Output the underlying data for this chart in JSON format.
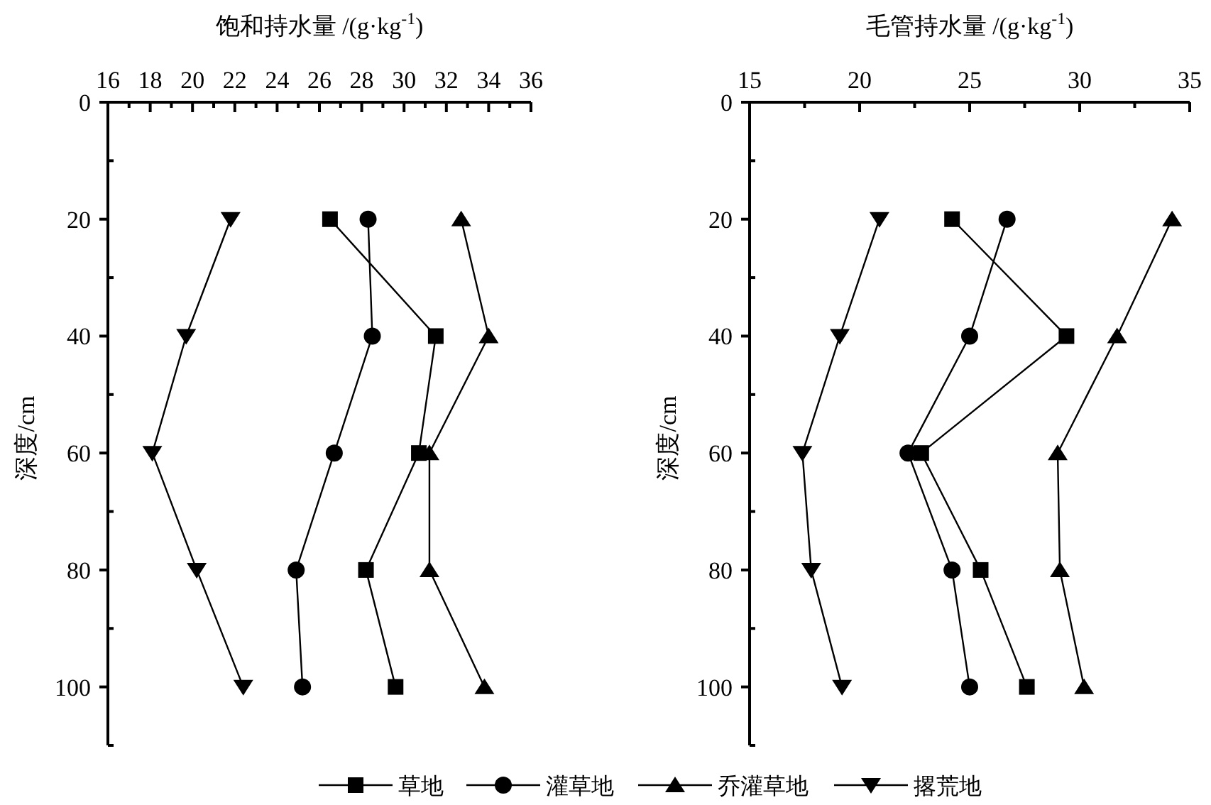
{
  "chart_data": [
    {
      "type": "line",
      "xlabel": "饱和持水量 /(g·kg$^{-1}$)",
      "ylabel": "深度/cm",
      "xlim": [
        16,
        36
      ],
      "ylim": [
        110,
        0
      ],
      "xticks": [
        16,
        {
          "value": 17,
          "label": null
        },
        18,
        {
          "value": 19,
          "label": null
        },
        20,
        {
          "value": 21,
          "label": null
        },
        22,
        {
          "value": 23,
          "label": null
        },
        24,
        {
          "value": 25,
          "label": null
        },
        26,
        {
          "value": 27,
          "label": null
        },
        28,
        {
          "value": 29,
          "label": null
        },
        30,
        {
          "value": 31,
          "label": null
        },
        32,
        {
          "value": 33,
          "label": null
        },
        34,
        {
          "value": 35,
          "label": null
        },
        36
      ],
      "yticks": [
        0,
        {
          "value": 10,
          "label": null
        },
        20,
        {
          "value": 30,
          "label": null
        },
        40,
        {
          "value": 50,
          "label": null
        },
        60,
        {
          "value": 70,
          "label": null
        },
        80,
        {
          "value": 90,
          "label": null
        },
        100,
        {
          "value": 110,
          "label": null
        }
      ],
      "legend": "bottom",
      "grid": false,
      "series": [
        {
          "name": "草地",
          "color": "#000000",
          "marker": "square",
          "x": [
            26.5,
            31.5,
            30.7,
            28.2,
            29.6
          ],
          "values": [
            20,
            40,
            60,
            80,
            100
          ]
        },
        {
          "name": "灌草地",
          "color": "#000000",
          "marker": "circle",
          "x": [
            28.3,
            28.5,
            26.7,
            24.9,
            25.2
          ],
          "values": [
            20,
            40,
            60,
            80,
            100
          ]
        },
        {
          "name": "乔灌草地",
          "color": "#000000",
          "marker": "triangle",
          "x": [
            32.7,
            34.0,
            31.2,
            31.2,
            33.8
          ],
          "values": [
            20,
            40,
            60,
            80,
            100
          ]
        },
        {
          "name": "撂荒地",
          "color": "#000000",
          "marker": "triangle-down",
          "x": [
            21.8,
            19.7,
            18.1,
            20.2,
            22.4
          ],
          "values": [
            20,
            40,
            60,
            80,
            100
          ]
        }
      ]
    },
    {
      "type": "line",
      "xlabel": "毛管持水量 /(g·kg$^{-1}$)",
      "ylabel": "深度/cm",
      "xlim": [
        15,
        35
      ],
      "ylim": [
        110,
        0
      ],
      "xticks": [
        15,
        {
          "value": 17.5,
          "label": null
        },
        20,
        {
          "value": 22.5,
          "label": null
        },
        25,
        {
          "value": 27.5,
          "label": null
        },
        30,
        {
          "value": 32.5,
          "label": null
        },
        35
      ],
      "yticks": [
        0,
        {
          "value": 10,
          "label": null
        },
        20,
        {
          "value": 30,
          "label": null
        },
        40,
        {
          "value": 50,
          "label": null
        },
        60,
        {
          "value": 70,
          "label": null
        },
        80,
        {
          "value": 90,
          "label": null
        },
        100,
        {
          "value": 110,
          "label": null
        }
      ],
      "grid": false,
      "series": [
        {
          "color": "#000000",
          "marker": "square",
          "x": [
            24.2,
            29.4,
            22.8,
            25.5,
            27.6
          ],
          "values": [
            20,
            40,
            60,
            80,
            100
          ]
        },
        {
          "color": "#000000",
          "marker": "circle",
          "x": [
            26.7,
            25.0,
            22.2,
            24.2,
            25.0
          ],
          "values": [
            20,
            40,
            60,
            80,
            100
          ]
        },
        {
          "color": "#000000",
          "marker": "triangle",
          "x": [
            34.2,
            31.7,
            29.0,
            29.1,
            30.2
          ],
          "values": [
            20,
            40,
            60,
            80,
            100
          ]
        },
        {
          "color": "#000000",
          "marker": "triangle-down",
          "x": [
            20.9,
            19.1,
            17.4,
            17.8,
            19.2
          ],
          "values": [
            20,
            40,
            60,
            80,
            100
          ]
        }
      ]
    }
  ]
}
